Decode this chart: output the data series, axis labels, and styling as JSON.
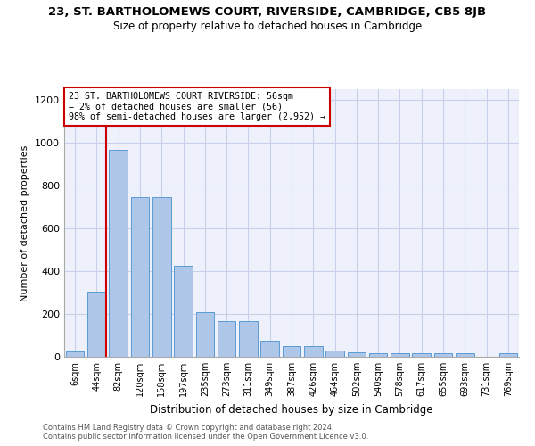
{
  "title": "23, ST. BARTHOLOMEWS COURT, RIVERSIDE, CAMBRIDGE, CB5 8JB",
  "subtitle": "Size of property relative to detached houses in Cambridge",
  "xlabel": "Distribution of detached houses by size in Cambridge",
  "ylabel": "Number of detached properties",
  "bar_labels": [
    "6sqm",
    "44sqm",
    "82sqm",
    "120sqm",
    "158sqm",
    "197sqm",
    "235sqm",
    "273sqm",
    "311sqm",
    "349sqm",
    "387sqm",
    "426sqm",
    "464sqm",
    "502sqm",
    "540sqm",
    "578sqm",
    "617sqm",
    "655sqm",
    "693sqm",
    "731sqm",
    "769sqm"
  ],
  "bar_values": [
    25,
    305,
    968,
    745,
    745,
    425,
    210,
    165,
    165,
    75,
    48,
    48,
    30,
    20,
    15,
    15,
    15,
    15,
    15,
    0,
    15
  ],
  "bar_color": "#aec6e8",
  "bar_edge_color": "#5b9bd5",
  "vline_color": "#cc0000",
  "vline_pos": 1.45,
  "annotation_text": "23 ST. BARTHOLOMEWS COURT RIVERSIDE: 56sqm\n← 2% of detached houses are smaller (56)\n98% of semi-detached houses are larger (2,952) →",
  "annotation_box_color": "#cc0000",
  "ylim": [
    0,
    1250
  ],
  "yticks": [
    0,
    200,
    400,
    600,
    800,
    1000,
    1200
  ],
  "footer1": "Contains HM Land Registry data © Crown copyright and database right 2024.",
  "footer2": "Contains public sector information licensed under the Open Government Licence v3.0.",
  "bg_color": "#eef1fb",
  "grid_color": "#c8cfe8"
}
